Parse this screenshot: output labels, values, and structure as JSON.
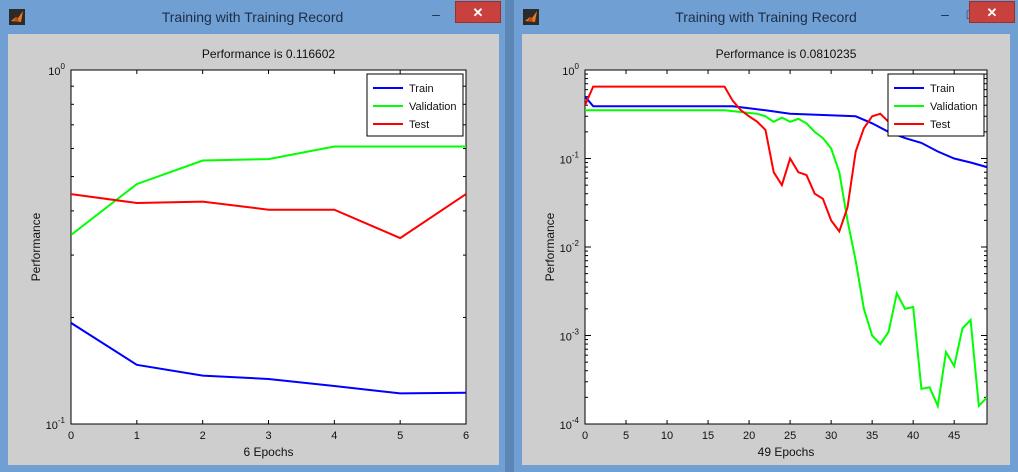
{
  "windows": [
    {
      "title": "Training with Training Record",
      "buttons": {
        "minimize": "–",
        "maximize": "□",
        "close": "✕"
      },
      "chart_data": {
        "type": "line",
        "title": "Performance is 0.116602",
        "xlabel": "6 Epochs",
        "ylabel": "Performance",
        "yscale": "log",
        "xlim": [
          0,
          6
        ],
        "ylim": [
          0.1,
          1
        ],
        "x_ticks": [
          "0",
          "1",
          "2",
          "3",
          "4",
          "5",
          "6"
        ],
        "y_ticks": [
          {
            "base": "10",
            "exp": "-1",
            "value": 0.1
          },
          {
            "base": "10",
            "exp": "0",
            "value": 1
          }
        ],
        "legend_position": "top-right",
        "series": [
          {
            "name": "Train",
            "color": "#0000ff",
            "points": [
              [
                0,
                0.193
              ],
              [
                1,
                0.147
              ],
              [
                2,
                0.137
              ],
              [
                3,
                0.134
              ],
              [
                4,
                0.128
              ],
              [
                5,
                0.122
              ],
              [
                6,
                0.1225
              ]
            ]
          },
          {
            "name": "Validation",
            "color": "#00ff00",
            "points": [
              [
                0,
                0.342
              ],
              [
                1,
                0.476
              ],
              [
                2,
                0.555
              ],
              [
                3,
                0.56
              ],
              [
                4,
                0.608
              ],
              [
                5,
                0.608
              ],
              [
                6,
                0.608
              ]
            ]
          },
          {
            "name": "Test",
            "color": "#ff0000",
            "points": [
              [
                0,
                0.446
              ],
              [
                1,
                0.421
              ],
              [
                2,
                0.425
              ],
              [
                3,
                0.403
              ],
              [
                4,
                0.403
              ],
              [
                5,
                0.335
              ],
              [
                6,
                0.446
              ]
            ]
          }
        ]
      }
    },
    {
      "title": "Training with Training Record",
      "buttons": {
        "minimize": "–",
        "maximize": "□",
        "close": "✕"
      },
      "chart_data": {
        "type": "line",
        "title": "Performance is 0.0810235",
        "xlabel": "49 Epochs",
        "ylabel": "Performance",
        "yscale": "log",
        "xlim": [
          0,
          49
        ],
        "ylim": [
          0.0001,
          1
        ],
        "x_ticks": [
          "0",
          "5",
          "10",
          "15",
          "20",
          "25",
          "30",
          "35",
          "40",
          "45"
        ],
        "y_ticks": [
          {
            "base": "10",
            "exp": "-4",
            "value": 0.0001
          },
          {
            "base": "10",
            "exp": "-3",
            "value": 0.001
          },
          {
            "base": "10",
            "exp": "-2",
            "value": 0.01
          },
          {
            "base": "10",
            "exp": "-1",
            "value": 0.1
          },
          {
            "base": "10",
            "exp": "0",
            "value": 1
          }
        ],
        "legend_position": "top-right",
        "series": [
          {
            "name": "Train",
            "color": "#0000ff",
            "points": [
              [
                0,
                0.5
              ],
              [
                1,
                0.39
              ],
              [
                18,
                0.39
              ],
              [
                20,
                0.37
              ],
              [
                22,
                0.35
              ],
              [
                25,
                0.32
              ],
              [
                33,
                0.3
              ],
              [
                35,
                0.25
              ],
              [
                37,
                0.2
              ],
              [
                39,
                0.17
              ],
              [
                41,
                0.15
              ],
              [
                43,
                0.12
              ],
              [
                45,
                0.1
              ],
              [
                47,
                0.09
              ],
              [
                49,
                0.08
              ]
            ]
          },
          {
            "name": "Validation",
            "color": "#00ff00",
            "points": [
              [
                0,
                0.35
              ],
              [
                17,
                0.35
              ],
              [
                21,
                0.32
              ],
              [
                22,
                0.3
              ],
              [
                23,
                0.26
              ],
              [
                24,
                0.29
              ],
              [
                25,
                0.26
              ],
              [
                26,
                0.28
              ],
              [
                27,
                0.25
              ],
              [
                28,
                0.2
              ],
              [
                29,
                0.17
              ],
              [
                30,
                0.13
              ],
              [
                31,
                0.07
              ],
              [
                32,
                0.02
              ],
              [
                33,
                0.007
              ],
              [
                34,
                0.002
              ],
              [
                35,
                0.001
              ],
              [
                36,
                0.0008
              ],
              [
                37,
                0.0011
              ],
              [
                38,
                0.003
              ],
              [
                39,
                0.002
              ],
              [
                40,
                0.0021
              ],
              [
                41,
                0.00025
              ],
              [
                42,
                0.00026
              ],
              [
                43,
                0.00016
              ],
              [
                44,
                0.00065
              ],
              [
                45,
                0.00045
              ],
              [
                46,
                0.0012
              ],
              [
                47,
                0.0015
              ],
              [
                48,
                0.00016
              ],
              [
                49,
                0.0002
              ]
            ]
          },
          {
            "name": "Test",
            "color": "#ff0000",
            "points": [
              [
                0,
                0.4
              ],
              [
                1,
                0.65
              ],
              [
                17,
                0.65
              ],
              [
                18,
                0.45
              ],
              [
                19,
                0.35
              ],
              [
                20,
                0.3
              ],
              [
                21,
                0.26
              ],
              [
                22,
                0.21
              ],
              [
                23,
                0.07
              ],
              [
                24,
                0.05
              ],
              [
                25,
                0.1
              ],
              [
                26,
                0.07
              ],
              [
                27,
                0.065
              ],
              [
                28,
                0.04
              ],
              [
                29,
                0.035
              ],
              [
                30,
                0.02
              ],
              [
                31,
                0.015
              ],
              [
                32,
                0.028
              ],
              [
                33,
                0.12
              ],
              [
                34,
                0.22
              ],
              [
                35,
                0.3
              ],
              [
                36,
                0.32
              ],
              [
                37,
                0.26
              ],
              [
                38,
                0.3
              ],
              [
                40,
                0.3
              ],
              [
                42,
                0.26
              ],
              [
                45,
                0.3
              ],
              [
                48,
                0.3
              ]
            ]
          }
        ]
      }
    }
  ]
}
